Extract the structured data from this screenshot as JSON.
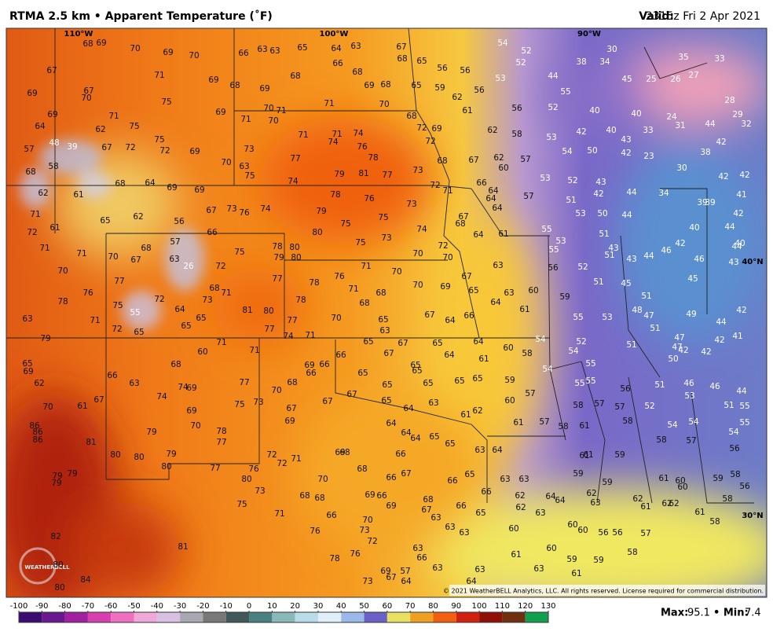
{
  "header": {
    "title": "RTMA 2.5 km • Apparent Temperature (˚F)",
    "valid_label": "Valid:",
    "valid": "2315z Fri 2 Apr 2021"
  },
  "map": {
    "longitudes": [
      "110°W",
      "100°W",
      "90°W"
    ],
    "latitudes": [
      "40°N",
      "30°N"
    ],
    "copyright": "© 2021 WeatherBELL Analytics, LLC. All rights reserved. License required for commercial distribution.",
    "logo": "WEATHERBELL",
    "stations": [
      68,
      69,
      70,
      69,
      70,
      66,
      63,
      63,
      65,
      64,
      63,
      67,
      68,
      65,
      56,
      56,
      54,
      52,
      52,
      53,
      67,
      71,
      69,
      68,
      69,
      68,
      66,
      68,
      69,
      68,
      65,
      59,
      62,
      56,
      69,
      67,
      70,
      75,
      69,
      70,
      71,
      71,
      70,
      69,
      71,
      75,
      64,
      62,
      71,
      70,
      68,
      72,
      69,
      61,
      62,
      58,
      56,
      52,
      40,
      40,
      24,
      31,
      44,
      28,
      29,
      32,
      42,
      38,
      35,
      33,
      27,
      26,
      25,
      45,
      30,
      34,
      38,
      44,
      55,
      57,
      48,
      39,
      67,
      72,
      75,
      72,
      69,
      73,
      71,
      71,
      74,
      74,
      76,
      78,
      72,
      68,
      67,
      62,
      60,
      57,
      53,
      42,
      40,
      33,
      43,
      42,
      50,
      54,
      23,
      30,
      42,
      42,
      68,
      58,
      68,
      64,
      69,
      69,
      70,
      63,
      75,
      77,
      74,
      79,
      81,
      77,
      73,
      72,
      71,
      66,
      64,
      64,
      57,
      53,
      52,
      43,
      42,
      44,
      34,
      39,
      39,
      41,
      62,
      61,
      73,
      76,
      74,
      79,
      78,
      76,
      73,
      67,
      64,
      51,
      53,
      50,
      44,
      42,
      71,
      61,
      72,
      65,
      62,
      56,
      67,
      66,
      80,
      75,
      75,
      74,
      68,
      64,
      61,
      55,
      51,
      40,
      44,
      71,
      71,
      70,
      67,
      68,
      63,
      26,
      57,
      75,
      78,
      79,
      80,
      80,
      75,
      73,
      70,
      70,
      72,
      53,
      55,
      51,
      43,
      43,
      44,
      46,
      42,
      46,
      44,
      40,
      43,
      70,
      77,
      76,
      78,
      75,
      55,
      72,
      64,
      73,
      68,
      71,
      72,
      77,
      78,
      76,
      71,
      70,
      78,
      71,
      68,
      68,
      70,
      69,
      67,
      65,
      64,
      63,
      60,
      63,
      56,
      52,
      51,
      45,
      45,
      51,
      48,
      47,
      49,
      63,
      71,
      72,
      65,
      65,
      65,
      81,
      80,
      77,
      77,
      70,
      65,
      63,
      67,
      64,
      66,
      61,
      59,
      55,
      53,
      51,
      47,
      47,
      44,
      42,
      42,
      41,
      79,
      71,
      71,
      74,
      71,
      65,
      67,
      67,
      65,
      64,
      64,
      61,
      60,
      58,
      54,
      54,
      52,
      51,
      42,
      42,
      50,
      65,
      69,
      60,
      68,
      69,
      66,
      66,
      66,
      65,
      65,
      65,
      65,
      65,
      59,
      54,
      55,
      55,
      62,
      63,
      66,
      74,
      69,
      77,
      70,
      68,
      67,
      65,
      65,
      57,
      55,
      56,
      51,
      46,
      46,
      44,
      53,
      70,
      61,
      67,
      74,
      69,
      75,
      73,
      67,
      67,
      65,
      64,
      63,
      61,
      62,
      60,
      58,
      57,
      57,
      52,
      51,
      55,
      86,
      86,
      86,
      79,
      70,
      78,
      77,
      69,
      64,
      64,
      64,
      65,
      65,
      61,
      57,
      58,
      61,
      58,
      54,
      54,
      54,
      55,
      81,
      80,
      80,
      79,
      80,
      72,
      72,
      71,
      69,
      68,
      66,
      63,
      64,
      61,
      61,
      59,
      58,
      57,
      56,
      79,
      79,
      79,
      76,
      77,
      80,
      70,
      68,
      66,
      67,
      66,
      65,
      63,
      63,
      59,
      59,
      61,
      60,
      60,
      59,
      58,
      56,
      73,
      68,
      68,
      69,
      66,
      69,
      68,
      67,
      66,
      66,
      62,
      62,
      64,
      64,
      62,
      63,
      62,
      61,
      62,
      62,
      61,
      58,
      75,
      71,
      66,
      70,
      63,
      65,
      63,
      60,
      60,
      56,
      56,
      57,
      58,
      82,
      76,
      73,
      72,
      63,
      63,
      60,
      81,
      63,
      66,
      60,
      58,
      78,
      76,
      61,
      59,
      59,
      61,
      80,
      80,
      84,
      69,
      67,
      57,
      63,
      63,
      63,
      73,
      64,
      64
    ]
  },
  "scale": {
    "ticks": [
      -100,
      -90,
      -80,
      -70,
      -60,
      -50,
      -40,
      -30,
      -20,
      -10,
      0,
      10,
      20,
      30,
      40,
      50,
      60,
      70,
      80,
      90,
      100,
      110,
      120,
      130
    ],
    "colors": [
      "#3a0c70",
      "#6a1890",
      "#a020a0",
      "#d840b0",
      "#f070c0",
      "#f0a8d8",
      "#d8c0e0",
      "#a8a8b0",
      "#787878",
      "#405858",
      "#4a8080",
      "#8ab8b8",
      "#b8dce8",
      "#e0f0f8",
      "#9ab8e8",
      "#6a60c8",
      "#e8e060",
      "#f0a020",
      "#f06010",
      "#d02010",
      "#901008",
      "#703010",
      "#10a050"
    ]
  },
  "stats": {
    "max_label": "Max:",
    "max": 95.1,
    "min_label": "• Min:",
    "min": 7.4
  }
}
